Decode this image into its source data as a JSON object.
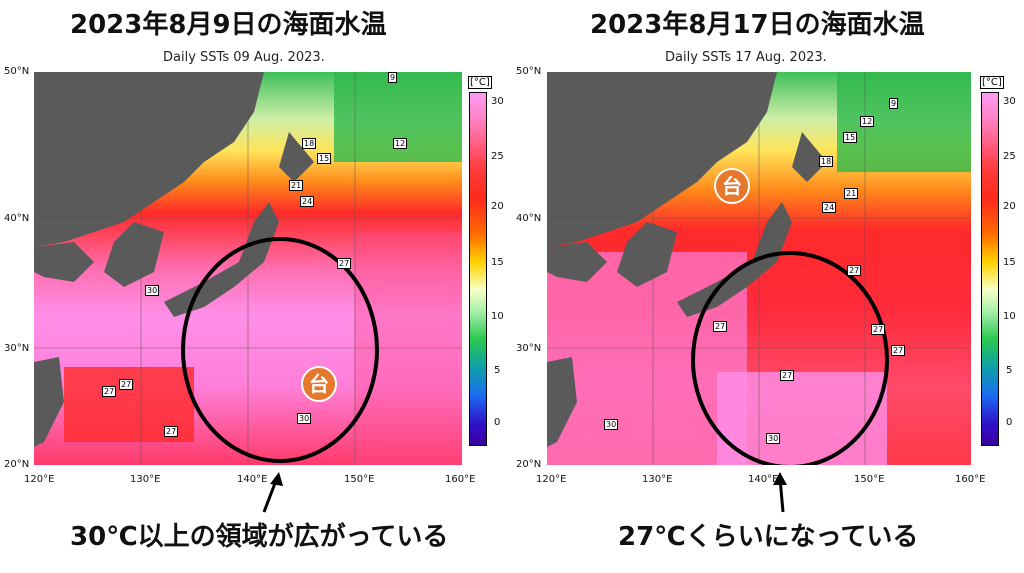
{
  "left": {
    "title": "2023年8月9日の海面水温",
    "subtitle": "Daily SSTs 09 Aug. 2023.",
    "caption": "30℃以上の領域が広がっている",
    "typhoon": "台",
    "contour_labels": [
      "9",
      "18",
      "12",
      "15",
      "21",
      "24",
      "27",
      "30",
      "27",
      "27",
      "27",
      "30"
    ]
  },
  "right": {
    "title": "2023年8月17日の海面水温",
    "subtitle": "Daily SSTs 17 Aug. 2023.",
    "caption": "27℃くらいになっている",
    "typhoon": "台",
    "contour_labels": [
      "9",
      "12",
      "15",
      "18",
      "21",
      "24",
      "27",
      "27",
      "27",
      "27",
      "27",
      "30",
      "30"
    ]
  },
  "axes": {
    "lat_ticks": [
      "50°N",
      "40°N",
      "30°N",
      "20°N"
    ],
    "lon_ticks": [
      "120°E",
      "130°E",
      "140°E",
      "150°E",
      "160°E"
    ]
  },
  "colorbar": {
    "unit": "[°C]",
    "ticks": [
      "30",
      "25",
      "20",
      "15",
      "10",
      "5",
      "0"
    ]
  },
  "colors": {
    "land": "#5a5a5a",
    "highlight_ellipse": "#000000",
    "typhoon_badge": "#e8772e"
  }
}
